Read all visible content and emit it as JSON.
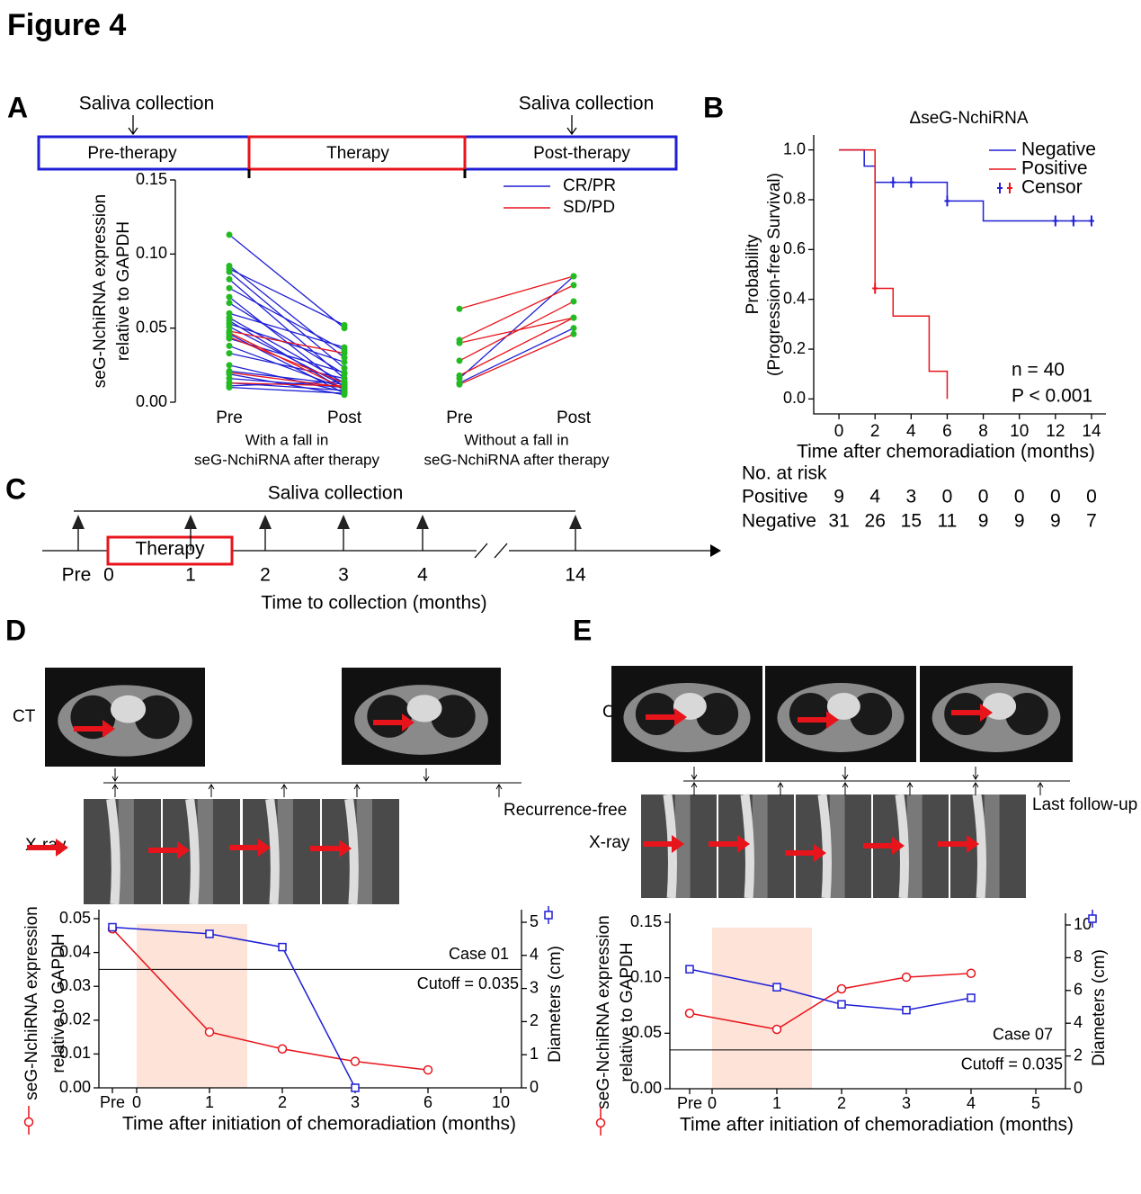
{
  "figure_title": "Figure 4",
  "panel_labels": [
    "A",
    "B",
    "C",
    "D",
    "E"
  ],
  "panel_a_timeline": {
    "saliva": [
      "Saliva collection",
      "Saliva collection"
    ],
    "phases": [
      "Pre-therapy",
      "Therapy",
      "Post-therapy"
    ]
  },
  "panel_c": {
    "title": "Saliva collection",
    "box": "Therapy",
    "labels": [
      "Pre",
      "0",
      "1",
      "2",
      "3",
      "4",
      "14"
    ],
    "xlabel": "Time to collection (months)"
  },
  "panel_d_images": {
    "ct_label": "CT",
    "xray_label": "X-ray",
    "followup_label": "Recurrence-free"
  },
  "panel_e_images": {
    "ct_label": "CT",
    "xray_label": "X-ray",
    "followup_label": "Last follow-up"
  },
  "chart_data": [
    {
      "type": "paired_line",
      "ylabel": [
        "seG-NchiRNA expression",
        "relative to GAPDH"
      ],
      "ylim": [
        0,
        0.15
      ],
      "yticks": [
        {
          "value": 0,
          "label": "0.00"
        },
        {
          "value": 0.05,
          "label": "0.05"
        },
        {
          "value": 0.1,
          "label": "0.10"
        },
        {
          "value": 0.15,
          "label": "0.15"
        }
      ],
      "point_color": "#22bb22",
      "series": [
        {
          "name": "CR/PR",
          "color": "#1f1fd6"
        },
        {
          "name": "SD/PD",
          "color": "#e8141b"
        }
      ],
      "groups": [
        {
          "categories": [
            "Pre",
            "Post"
          ],
          "label": [
            "With a fall in",
            "seG-NchiRNA after therapy"
          ],
          "values": [
            [
              [
                0.113,
                0.05
              ],
              [
                0.092,
                0.03
              ],
              [
                0.09,
                0.052
              ],
              [
                0.088,
                0.023
              ],
              [
                0.083,
                0.016
              ],
              [
                0.077,
                0.035
              ],
              [
                0.071,
                0.01
              ],
              [
                0.067,
                0.019
              ],
              [
                0.06,
                0.037
              ],
              [
                0.057,
                0.013
              ],
              [
                0.055,
                0.008
              ],
              [
                0.053,
                0.027
              ],
              [
                0.051,
                0.011
              ],
              [
                0.046,
                0.006
              ],
              [
                0.043,
                0.02
              ],
              [
                0.038,
                0.009
              ],
              [
                0.033,
                0.016
              ],
              [
                0.025,
                0.007
              ],
              [
                0.021,
                0.012
              ],
              [
                0.019,
                0.005
              ],
              [
                0.016,
                0.01
              ],
              [
                0.013,
                0.008
              ],
              [
                0.011,
                0.014
              ],
              [
                0.01,
                0.006
              ]
            ],
            [
              [
                0.048,
                0.033
              ],
              [
                0.047,
                0.009
              ],
              [
                0.044,
                0.013
              ],
              [
                0.02,
                0.01
              ],
              [
                0.013,
                0.011
              ]
            ]
          ]
        },
        {
          "categories": [
            "Pre",
            "Post"
          ],
          "label": [
            "Without a fall in",
            "seG-NchiRNA after therapy"
          ],
          "values": [
            [
              [
                0.016,
                0.085
              ],
              [
                0.013,
                0.05
              ]
            ],
            [
              [
                0.063,
                0.085
              ],
              [
                0.042,
                0.079
              ],
              [
                0.04,
                0.057
              ],
              [
                0.028,
                0.068
              ],
              [
                0.018,
                0.057
              ],
              [
                0.012,
                0.046
              ]
            ]
          ]
        }
      ]
    },
    {
      "type": "step",
      "title": "ΔseG-NchiRNA",
      "ylabel": [
        "Probability",
        "(Progression-free Survival)"
      ],
      "xlabel": "Time after chemoradiation (months)",
      "xlim": [
        -1.4,
        14.8
      ],
      "xticks": [
        0,
        2,
        4,
        6,
        8,
        10,
        12,
        14
      ],
      "ylim": [
        -0.06,
        1.06
      ],
      "yticks": [
        {
          "value": 0,
          "label": "0.0"
        },
        {
          "value": 0.2,
          "label": "0.2"
        },
        {
          "value": 0.4,
          "label": "0.4"
        },
        {
          "value": 0.6,
          "label": "0.6"
        },
        {
          "value": 0.8,
          "label": "0.8"
        },
        {
          "value": 1,
          "label": "1.0"
        }
      ],
      "series": [
        {
          "name": "Negative",
          "color": "#1f1fd6",
          "x": [
            0,
            1.4,
            2,
            6,
            8,
            14
          ],
          "values": [
            1.0,
            0.935,
            0.87,
            0.795,
            0.715,
            0.715
          ],
          "censor_x": [
            3,
            4,
            6,
            12,
            13,
            14
          ],
          "censor_y": [
            0.87,
            0.87,
            0.795,
            0.715,
            0.715,
            0.715
          ]
        },
        {
          "name": "Positive",
          "color": "#e8141b",
          "x": [
            0,
            2,
            3,
            5,
            6
          ],
          "values": [
            1.0,
            0.444,
            0.333,
            0.111,
            0.0
          ],
          "censor_x": [
            2
          ],
          "censor_y": [
            0.444
          ]
        }
      ],
      "censor_label": "Censor",
      "annotations": [
        "n = 40",
        "P < 0.001"
      ],
      "risk_table": {
        "title": "No. at risk",
        "rows": [
          {
            "name": "Positive",
            "values": [
              9,
              4,
              3,
              0,
              0,
              0,
              0,
              0
            ]
          },
          {
            "name": "Negative",
            "values": [
              31,
              26,
              15,
              11,
              9,
              9,
              9,
              7
            ]
          }
        ]
      }
    },
    {
      "type": "dual_line",
      "ylabel": [
        "seG-NchiRNA expression",
        "relative to GAPDH"
      ],
      "y2label": "Diameters (cm)",
      "xlabel": "Time after initiation of chemoradiation (months)",
      "categories": [
        "Pre",
        "0",
        "1",
        "2",
        "3",
        "6",
        "10"
      ],
      "ylim": [
        0,
        0.05
      ],
      "yticks": [
        {
          "value": 0,
          "label": "0.00"
        },
        {
          "value": 0.01,
          "label": "0.01"
        },
        {
          "value": 0.02,
          "label": "0.02"
        },
        {
          "value": 0.03,
          "label": "0.03"
        },
        {
          "value": 0.04,
          "label": "0.04"
        },
        {
          "value": 0.05,
          "label": "0.05"
        }
      ],
      "y2lim": [
        0,
        5
      ],
      "y2ticks": [
        0,
        1,
        2,
        3,
        4,
        5
      ],
      "series": [
        {
          "color": "#e8141b",
          "marker": "circle",
          "x": [
            "Pre",
            "1",
            "2",
            "3",
            "6"
          ],
          "values": [
            0.047,
            0.0165,
            0.0115,
            0.0078,
            0.0053
          ]
        },
        {
          "color": "#1f1fd6",
          "marker": "square",
          "axis": "y2",
          "x": [
            "Pre",
            "1",
            "2",
            "3"
          ],
          "values": [
            4.85,
            4.65,
            4.25,
            0.0
          ]
        }
      ],
      "cutoff": 0.035,
      "annotations": [
        "Case 01",
        "Cutoff = 0.035"
      ]
    },
    {
      "type": "dual_line",
      "ylabel": [
        "seG-NchiRNA expression",
        "relative to GAPDH"
      ],
      "y2label": "Diameters (cm)",
      "xlabel": "Time after initiation of chemoradiation (months)",
      "categories": [
        "Pre",
        "0",
        "1",
        "2",
        "3",
        "4",
        "5"
      ],
      "ylim": [
        0,
        0.15
      ],
      "yticks": [
        {
          "value": 0,
          "label": "0.00"
        },
        {
          "value": 0.05,
          "label": "0.05"
        },
        {
          "value": 0.1,
          "label": "0.10"
        },
        {
          "value": 0.15,
          "label": "0.15"
        }
      ],
      "y2lim": [
        0,
        10
      ],
      "y2ticks": [
        0,
        2,
        4,
        6,
        8,
        10
      ],
      "series": [
        {
          "color": "#e8141b",
          "marker": "circle",
          "x": [
            "Pre",
            "1",
            "2",
            "3",
            "4"
          ],
          "values": [
            0.068,
            0.0535,
            0.09,
            0.1005,
            0.104
          ]
        },
        {
          "color": "#1f1fd6",
          "marker": "square",
          "axis": "y2",
          "x": [
            "Pre",
            "1",
            "2",
            "3",
            "4"
          ],
          "values": [
            7.3,
            6.2,
            5.15,
            4.8,
            5.55
          ]
        }
      ],
      "cutoff": 0.035,
      "annotations": [
        "Case 07",
        "Cutoff = 0.035"
      ]
    }
  ]
}
